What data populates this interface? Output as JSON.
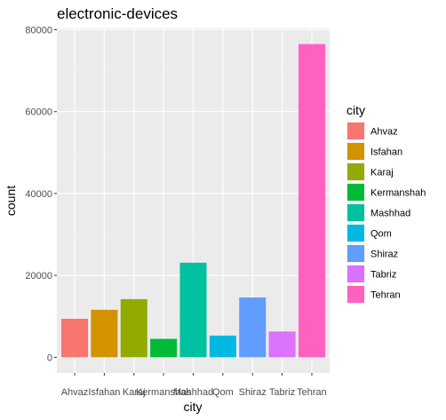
{
  "chart_data": {
    "type": "bar",
    "title": "electronic-devices",
    "xlabel": "city",
    "ylabel": "count",
    "categories": [
      "Ahvaz",
      "Isfahan",
      "Karaj",
      "Kermanshah",
      "Mashhad",
      "Qom",
      "Shiraz",
      "Tabriz",
      "Tehran"
    ],
    "values": [
      9400,
      11600,
      14200,
      4500,
      23100,
      5300,
      14600,
      6300,
      76500
    ],
    "colors": [
      "#F8766D",
      "#D39200",
      "#93AA00",
      "#00BA38",
      "#00C19F",
      "#00B9E3",
      "#619CFF",
      "#DB72FB",
      "#FF61C3"
    ],
    "ylim": [
      0,
      80000
    ],
    "yticks": [
      0,
      20000,
      40000,
      60000,
      80000
    ],
    "ytick_labels": [
      "0",
      "20000",
      "40000",
      "60000",
      "80000"
    ],
    "grid": true,
    "panel_background": "#EBEBEB",
    "legend": {
      "title": "city",
      "position": "right",
      "entries": [
        "Ahvaz",
        "Isfahan",
        "Karaj",
        "Kermanshah",
        "Mashhad",
        "Qom",
        "Shiraz",
        "Tabriz",
        "Tehran"
      ]
    }
  }
}
